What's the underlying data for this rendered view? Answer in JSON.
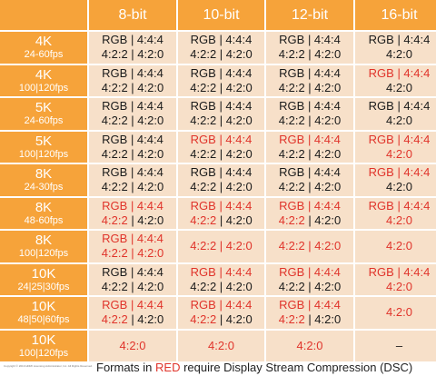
{
  "columns": [
    "8-bit",
    "10-bit",
    "12-bit",
    "16-bit"
  ],
  "rows": [
    {
      "res": "4K",
      "fps": "24-60fps",
      "cells": [
        [
          {
            "t": "RGB | 4:4:4",
            "r": false
          }
        ],
        [
          {
            "t": "4:2:2 | 4:2:0",
            "r": false
          }
        ],
        [
          {
            "t": "RGB | 4:4:4",
            "r": false
          }
        ],
        [
          {
            "t": "4:2:2 | 4:2:0",
            "r": false
          }
        ],
        [
          {
            "t": "RGB | 4:4:4",
            "r": false
          }
        ],
        [
          {
            "t": "4:2:2 | 4:2:0",
            "r": false
          }
        ],
        [
          {
            "t": "RGB | 4:4:4",
            "r": false
          }
        ],
        [
          {
            "t": "4:2:0",
            "r": false
          }
        ]
      ]
    },
    {
      "res": "4K",
      "fps": "100|120fps",
      "cells": [
        [
          {
            "t": "RGB | 4:4:4",
            "r": false
          }
        ],
        [
          {
            "t": "4:2:2 | 4:2:0",
            "r": false
          }
        ],
        [
          {
            "t": "RGB | 4:4:4",
            "r": false
          }
        ],
        [
          {
            "t": "4:2:2 | 4:2:0",
            "r": false
          }
        ],
        [
          {
            "t": "RGB | 4:4:4",
            "r": false
          }
        ],
        [
          {
            "t": "4:2:2 | 4:2:0",
            "r": false
          }
        ],
        [
          {
            "t": "RGB | 4:4:4",
            "r": true
          }
        ],
        [
          {
            "t": "4:2:0",
            "r": false
          }
        ]
      ]
    },
    {
      "res": "5K",
      "fps": "24-60fps",
      "cells": [
        [
          {
            "t": "RGB | 4:4:4",
            "r": false
          }
        ],
        [
          {
            "t": "4:2:2 | 4:2:0",
            "r": false
          }
        ],
        [
          {
            "t": "RGB | 4:4:4",
            "r": false
          }
        ],
        [
          {
            "t": "4:2:2 | 4:2:0",
            "r": false
          }
        ],
        [
          {
            "t": "RGB | 4:4:4",
            "r": false
          }
        ],
        [
          {
            "t": "4:2:2 | 4:2:0",
            "r": false
          }
        ],
        [
          {
            "t": "RGB | 4:4:4",
            "r": false
          }
        ],
        [
          {
            "t": "4:2:0",
            "r": false
          }
        ]
      ]
    },
    {
      "res": "5K",
      "fps": "100|120fps",
      "cells": [
        [
          {
            "t": "RGB | 4:4:4",
            "r": false
          }
        ],
        [
          {
            "t": "4:2:2 | 4:2:0",
            "r": false
          }
        ],
        [
          {
            "t": "RGB | 4:4:4",
            "r": true
          }
        ],
        [
          {
            "t": "4:2:2 | 4:2:0",
            "r": false
          }
        ],
        [
          {
            "t": "RGB | 4:4:4",
            "r": true
          }
        ],
        [
          {
            "t": "4:2:2 | 4:2:0",
            "r": false
          }
        ],
        [
          {
            "t": "RGB | 4:4:4",
            "r": true
          }
        ],
        [
          {
            "t": "4:2:0",
            "r": true
          }
        ]
      ]
    },
    {
      "res": "8K",
      "fps": "24-30fps",
      "cells": [
        [
          {
            "t": "RGB | 4:4:4",
            "r": false
          }
        ],
        [
          {
            "t": "4:2:2 | 4:2:0",
            "r": false
          }
        ],
        [
          {
            "t": "RGB | 4:4:4",
            "r": false
          }
        ],
        [
          {
            "t": "4:2:2 | 4:2:0",
            "r": false
          }
        ],
        [
          {
            "t": "RGB | 4:4:4",
            "r": false
          }
        ],
        [
          {
            "t": "4:2:2 | 4:2:0",
            "r": false
          }
        ],
        [
          {
            "t": "RGB | 4:4:4",
            "r": true
          }
        ],
        [
          {
            "t": "4:2:0",
            "r": false
          }
        ]
      ]
    },
    {
      "res": "8K",
      "fps": "48-60fps",
      "cells": [
        [
          {
            "t": "RGB | 4:4:4",
            "r": true
          }
        ],
        [
          {
            "t": "4:2:2",
            "r": true
          },
          {
            "t": " | 4:2:0",
            "r": false
          }
        ],
        [
          {
            "t": "RGB | 4:4:4",
            "r": true
          }
        ],
        [
          {
            "t": "4:2:2",
            "r": true
          },
          {
            "t": " | 4:2:0",
            "r": false
          }
        ],
        [
          {
            "t": "RGB | 4:4:4",
            "r": true
          }
        ],
        [
          {
            "t": "4:2:2",
            "r": true
          },
          {
            "t": " | 4:2:0",
            "r": false
          }
        ],
        [
          {
            "t": "RGB | 4:4:4",
            "r": true
          }
        ],
        [
          {
            "t": "4:2:0",
            "r": true
          }
        ]
      ]
    },
    {
      "res": "8K",
      "fps": "100|120fps",
      "cells": [
        [
          {
            "t": "RGB | 4:4:4",
            "r": true
          }
        ],
        [
          {
            "t": "4:2:2 | 4:2:0",
            "r": true
          }
        ],
        [
          {
            "t": "4:2:2 | 4:2:0",
            "r": true
          }
        ],
        [
          {
            "t": "4:2:2 | 4:2:0",
            "r": true
          }
        ],
        [
          {
            "t": "4:2:0",
            "r": true
          }
        ]
      ],
      "single": true
    },
    {
      "res": "10K",
      "fps": "24|25|30fps",
      "cells": [
        [
          {
            "t": "RGB | 4:4:4",
            "r": false
          }
        ],
        [
          {
            "t": "4:2:2 | 4:2:0",
            "r": false
          }
        ],
        [
          {
            "t": "RGB | 4:4:4",
            "r": true
          }
        ],
        [
          {
            "t": "4:2:2 | 4:2:0",
            "r": false
          }
        ],
        [
          {
            "t": "RGB | 4:4:4",
            "r": true
          }
        ],
        [
          {
            "t": "4:2:2 | 4:2:0",
            "r": false
          }
        ],
        [
          {
            "t": "RGB | 4:4:4",
            "r": true
          }
        ],
        [
          {
            "t": "4:2:0",
            "r": true
          }
        ]
      ]
    },
    {
      "res": "10K",
      "fps": "48|50|60fps",
      "cells": [
        [
          {
            "t": "RGB | 4:4:4",
            "r": true
          }
        ],
        [
          {
            "t": "4:2:2",
            "r": true
          },
          {
            "t": " | 4:2:0",
            "r": false
          }
        ],
        [
          {
            "t": "RGB | 4:4:4",
            "r": true
          }
        ],
        [
          {
            "t": "4:2:2",
            "r": true
          },
          {
            "t": " | 4:2:0",
            "r": false
          }
        ],
        [
          {
            "t": "RGB | 4:4:4",
            "r": true
          }
        ],
        [
          {
            "t": "4:2:2",
            "r": true
          },
          {
            "t": " | 4:2:0",
            "r": false
          }
        ],
        [
          {
            "t": "4:2:0",
            "r": true
          }
        ]
      ],
      "last_single": true
    },
    {
      "res": "10K",
      "fps": "100|120fps",
      "cells": [
        [
          {
            "t": "4:2:0",
            "r": true
          }
        ],
        [
          {
            "t": "4:2:0",
            "r": true
          }
        ],
        [
          {
            "t": "4:2:0",
            "r": true
          }
        ],
        [
          {
            "t": "–",
            "r": false
          }
        ]
      ],
      "all_single": true
    }
  ],
  "footer": {
    "copyright": "Copyright © 2019 HDMI Licensing Administrator, Inc.  All Rights Reserved.",
    "note_before": "Formats in ",
    "note_red": "RED",
    "note_after": " require Display Stream Compression (DSC)"
  },
  "colors": {
    "header_bg": "#f6a33a",
    "cell_bg": "#f7e0c9",
    "red": "#e0342b"
  }
}
